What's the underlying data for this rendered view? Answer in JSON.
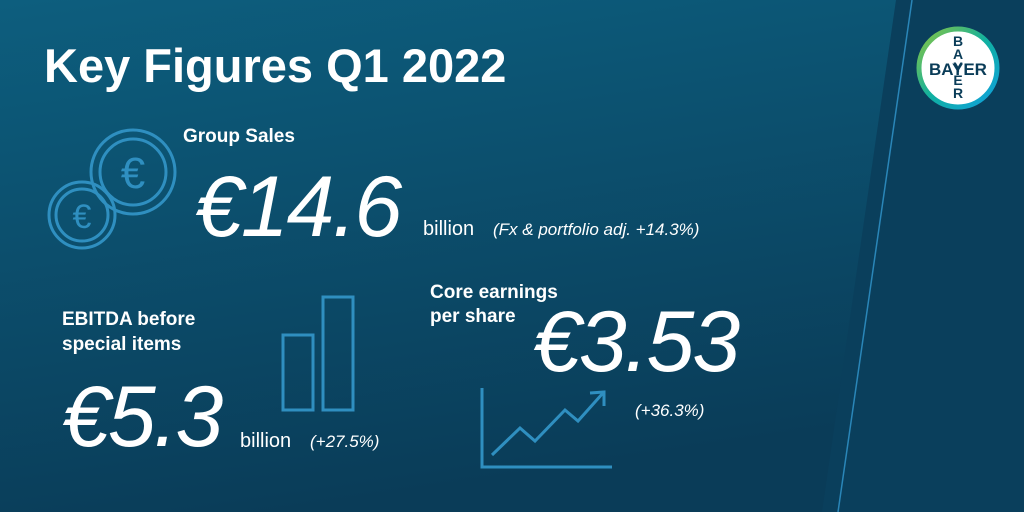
{
  "header": {
    "title": "Key Figures Q1 2022"
  },
  "logo": {
    "text": "BAYER"
  },
  "group_sales": {
    "label": "Group Sales",
    "value": "€14.6",
    "unit": "billion",
    "note": "(Fx & portfolio adj. +14.3%)"
  },
  "ebitda": {
    "label_lines": [
      "EBITDA before",
      "special items"
    ],
    "value": "€5.3",
    "unit": "billion",
    "note": "(+27.5%)"
  },
  "eps": {
    "label_lines": [
      "Core earnings",
      "per share"
    ],
    "value": "€3.53",
    "note": "(+36.3%)"
  }
}
